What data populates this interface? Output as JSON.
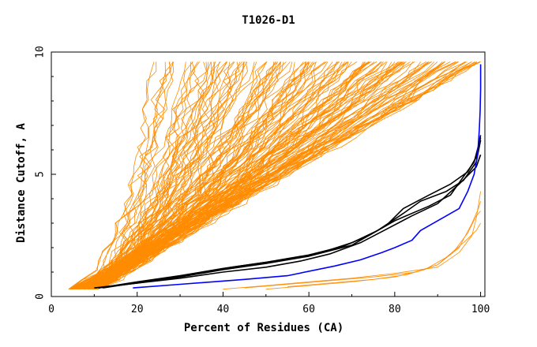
{
  "chart_data": {
    "type": "line",
    "title": "T1026-D1",
    "xlabel": "Percent of Residues (CA)",
    "ylabel": "Distance Cutoff, A",
    "xlim": [
      0,
      101
    ],
    "ylim": [
      0,
      10
    ],
    "x_ticks": [
      "0",
      "20",
      "40",
      "60",
      "80",
      "100"
    ],
    "y_ticks": [
      "0",
      "5",
      "10"
    ],
    "grid": false,
    "legend": "none",
    "colors": {
      "models": "#ff8c00",
      "highlighted": "#000000",
      "best": "#0000ff",
      "axes": "#000000"
    },
    "best_curve": {
      "x": [
        19,
        30,
        45,
        55,
        66,
        72,
        77,
        80,
        84,
        86,
        90,
        95,
        97,
        98.5,
        99.3,
        99.7,
        99.9,
        100,
        100
      ],
      "y": [
        0.35,
        0.5,
        0.7,
        0.85,
        1.25,
        1.5,
        1.8,
        2.0,
        2.3,
        2.7,
        3.1,
        3.6,
        4.3,
        5.0,
        5.8,
        6.8,
        7.6,
        8.5,
        9.5
      ]
    },
    "highlighted_curves": [
      {
        "x": [
          11,
          20,
          30,
          40,
          50,
          60,
          68,
          74,
          80,
          88,
          93,
          96,
          98.5,
          100
        ],
        "y": [
          0.35,
          0.6,
          0.85,
          1.15,
          1.4,
          1.7,
          2.05,
          2.5,
          3.1,
          3.7,
          4.15,
          4.9,
          5.5,
          6.5
        ]
      },
      {
        "x": [
          10,
          20,
          30,
          40,
          50,
          60,
          70,
          78,
          82,
          88,
          93,
          97,
          99,
          100
        ],
        "y": [
          0.35,
          0.55,
          0.8,
          1.1,
          1.35,
          1.65,
          2.1,
          2.9,
          3.6,
          4.15,
          4.6,
          5.1,
          5.7,
          6.6
        ]
      },
      {
        "x": [
          11,
          20,
          30,
          40,
          50,
          58,
          65,
          72,
          78,
          84,
          90,
          95,
          99,
          100
        ],
        "y": [
          0.35,
          0.55,
          0.75,
          1.0,
          1.2,
          1.45,
          1.75,
          2.2,
          2.75,
          3.3,
          3.8,
          4.6,
          5.3,
          5.8
        ]
      },
      {
        "x": [
          12,
          22,
          32,
          42,
          52,
          62,
          70,
          76,
          82,
          86,
          92,
          96,
          99,
          100
        ],
        "y": [
          0.35,
          0.62,
          0.9,
          1.2,
          1.45,
          1.75,
          2.2,
          2.7,
          3.4,
          3.9,
          4.3,
          4.75,
          5.5,
          6.4
        ]
      }
    ],
    "outlier_curves": [
      {
        "x": [
          40,
          50,
          60,
          70,
          80,
          90,
          95,
          98,
          99,
          100
        ],
        "y": [
          0.3,
          0.45,
          0.6,
          0.75,
          0.95,
          1.2,
          1.8,
          2.5,
          3.2,
          4.3
        ]
      },
      {
        "x": [
          45,
          55,
          65,
          75,
          85,
          90,
          95,
          98,
          99.5,
          100
        ],
        "y": [
          0.35,
          0.5,
          0.65,
          0.8,
          1.0,
          1.3,
          2.0,
          3.0,
          3.6,
          3.9
        ]
      },
      {
        "x": [
          50,
          60,
          70,
          80,
          87,
          92,
          96,
          99,
          100
        ],
        "y": [
          0.3,
          0.45,
          0.6,
          0.8,
          1.1,
          1.6,
          2.2,
          2.7,
          3.0
        ]
      },
      {
        "x": [
          55,
          65,
          75,
          83,
          90,
          94,
          97,
          99,
          100
        ],
        "y": [
          0.4,
          0.55,
          0.7,
          0.9,
          1.3,
          1.9,
          2.6,
          3.3,
          3.5
        ]
      }
    ]
  }
}
